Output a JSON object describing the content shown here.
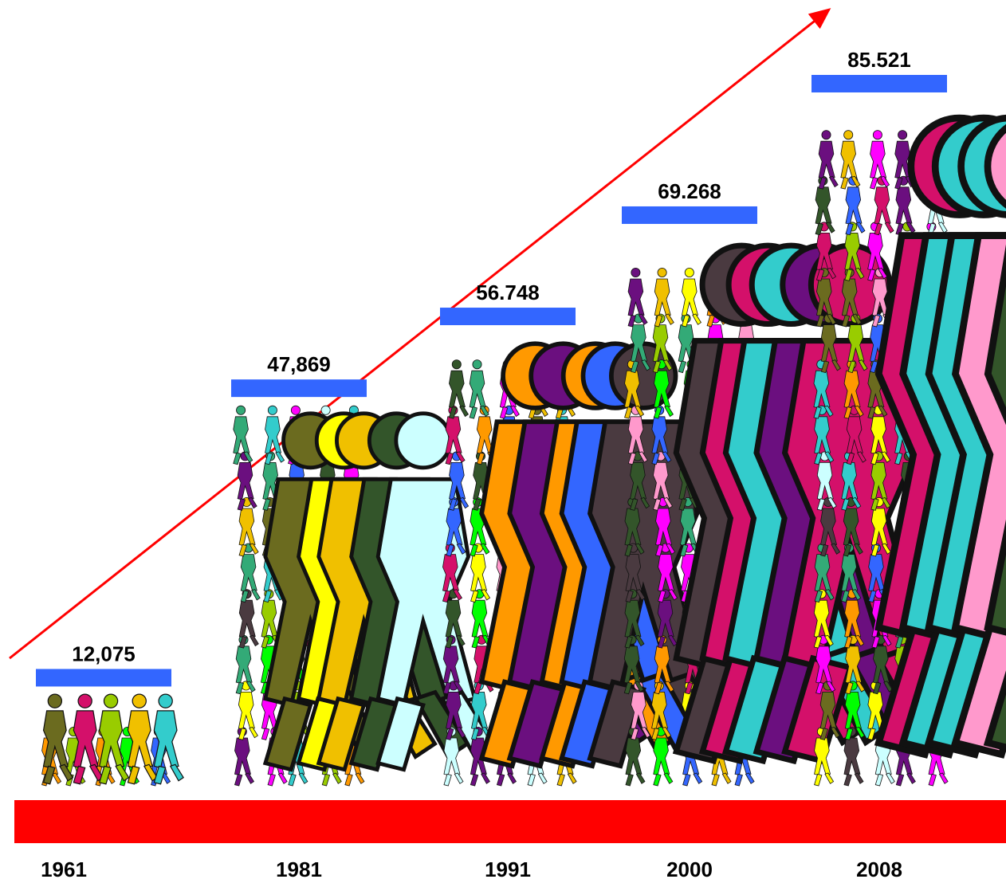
{
  "chart_data": {
    "type": "bar",
    "title": "",
    "xlabel": "",
    "ylabel": "",
    "categories": [
      "1961",
      "1981",
      "1991",
      "2000",
      "2008"
    ],
    "value_labels": [
      "12,075",
      "47,869",
      "56.748",
      "69.268",
      "85.521"
    ],
    "values": [
      12075,
      47869,
      56748,
      69268,
      85521
    ],
    "ylim": [
      0,
      85521
    ],
    "grid": false,
    "legend": "none",
    "bar_marker_color": "#3366ff",
    "baseline_color": "#ff0000",
    "trend_arrow_color": "#ff0000",
    "figure_colors": [
      "#6b0f7f",
      "#d4106a",
      "#f0c000",
      "#99cc00",
      "#ffff00",
      "#33aa77",
      "#3366ff",
      "#33cccc",
      "#ff9900",
      "#ff99cc",
      "#4a3a40",
      "#33552a",
      "#6b6b1f",
      "#ccffff",
      "#00ff00",
      "#ff00ff"
    ]
  }
}
